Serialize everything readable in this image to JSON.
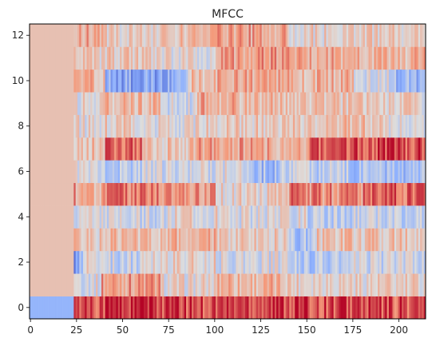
{
  "chart_data": {
    "type": "heatmap",
    "title": "MFCC",
    "xlabel": "",
    "ylabel": "",
    "xlim": [
      -0.5,
      214.5
    ],
    "ylim": [
      -0.5,
      12.5
    ],
    "x_ticks": [
      0,
      25,
      50,
      75,
      100,
      125,
      150,
      175,
      200
    ],
    "y_ticks": [
      0,
      2,
      4,
      6,
      8,
      10,
      12
    ],
    "colormap": "coolwarm",
    "grid": false,
    "n_coefficients": 13,
    "n_frames": 215,
    "silent_frames": 24,
    "rows": [
      {
        "coef": 0,
        "silent": -0.45,
        "segments": [
          [
            24,
            0.62
          ],
          [
            40,
            0.8
          ],
          [
            70,
            0.86
          ],
          [
            110,
            0.78
          ],
          [
            150,
            0.82
          ],
          [
            180,
            0.78
          ],
          [
            214,
            0.74
          ]
        ]
      },
      {
        "coef": 1,
        "silent": 0.22,
        "segments": [
          [
            24,
            0.2
          ],
          [
            38,
            0.0
          ],
          [
            70,
            0.45
          ],
          [
            100,
            0.05
          ],
          [
            110,
            0.4
          ],
          [
            140,
            0.3
          ],
          [
            175,
            0.15
          ],
          [
            214,
            0.1
          ]
        ]
      },
      {
        "coef": 2,
        "silent": 0.22,
        "segments": [
          [
            24,
            -0.75
          ],
          [
            28,
            -0.4
          ],
          [
            40,
            0.05
          ],
          [
            60,
            -0.15
          ],
          [
            100,
            0.1
          ],
          [
            140,
            -0.05
          ],
          [
            175,
            -0.25
          ],
          [
            214,
            -0.1
          ]
        ]
      },
      {
        "coef": 3,
        "silent": 0.22,
        "segments": [
          [
            24,
            0.55
          ],
          [
            40,
            0.15
          ],
          [
            70,
            0.25
          ],
          [
            100,
            0.3
          ],
          [
            140,
            0.15
          ],
          [
            155,
            -0.3
          ],
          [
            180,
            0.2
          ],
          [
            214,
            0.2
          ]
        ]
      },
      {
        "coef": 4,
        "silent": 0.22,
        "segments": [
          [
            24,
            0.05
          ],
          [
            40,
            0.0
          ],
          [
            75,
            -0.1
          ],
          [
            110,
            0.05
          ],
          [
            150,
            0.0
          ],
          [
            175,
            -0.2
          ],
          [
            214,
            -0.15
          ]
        ]
      },
      {
        "coef": 5,
        "silent": 0.22,
        "segments": [
          [
            24,
            0.45
          ],
          [
            40,
            0.35
          ],
          [
            70,
            0.55
          ],
          [
            100,
            0.45
          ],
          [
            140,
            0.1
          ],
          [
            150,
            0.55
          ],
          [
            180,
            0.5
          ],
          [
            214,
            0.65
          ]
        ]
      },
      {
        "coef": 6,
        "silent": 0.22,
        "segments": [
          [
            24,
            0.45
          ],
          [
            40,
            0.0
          ],
          [
            60,
            -0.2
          ],
          [
            90,
            -0.1
          ],
          [
            120,
            -0.05
          ],
          [
            135,
            -0.35
          ],
          [
            150,
            -0.1
          ],
          [
            175,
            -0.2
          ],
          [
            214,
            -0.35
          ]
        ]
      },
      {
        "coef": 7,
        "silent": 0.22,
        "segments": [
          [
            24,
            -0.05
          ],
          [
            40,
            0.25
          ],
          [
            60,
            0.65
          ],
          [
            90,
            0.2
          ],
          [
            130,
            0.4
          ],
          [
            150,
            0.3
          ],
          [
            180,
            0.7
          ],
          [
            214,
            0.75
          ]
        ]
      },
      {
        "coef": 8,
        "silent": 0.22,
        "segments": [
          [
            24,
            0.1
          ],
          [
            40,
            0.05
          ],
          [
            60,
            0.15
          ],
          [
            90,
            0.05
          ],
          [
            130,
            0.15
          ],
          [
            160,
            0.2
          ],
          [
            190,
            0.25
          ],
          [
            214,
            0.05
          ]
        ]
      },
      {
        "coef": 9,
        "silent": 0.22,
        "segments": [
          [
            24,
            0.4
          ],
          [
            40,
            0.05
          ],
          [
            70,
            0.25
          ],
          [
            90,
            -0.1
          ],
          [
            110,
            0.35
          ],
          [
            150,
            0.3
          ],
          [
            190,
            0.2
          ],
          [
            214,
            0.1
          ]
        ]
      },
      {
        "coef": 10,
        "silent": 0.22,
        "segments": [
          [
            24,
            0.2
          ],
          [
            40,
            0.3
          ],
          [
            85,
            -0.5
          ],
          [
            100,
            0.25
          ],
          [
            140,
            0.35
          ],
          [
            175,
            0.3
          ],
          [
            195,
            -0.1
          ],
          [
            214,
            -0.4
          ]
        ]
      },
      {
        "coef": 11,
        "silent": 0.22,
        "segments": [
          [
            24,
            0.55
          ],
          [
            40,
            0.1
          ],
          [
            70,
            0.15
          ],
          [
            100,
            0.05
          ],
          [
            140,
            0.45
          ],
          [
            175,
            0.4
          ],
          [
            214,
            0.3
          ]
        ]
      },
      {
        "coef": 12,
        "silent": 0.22,
        "segments": [
          [
            24,
            0.1
          ],
          [
            40,
            0.35
          ],
          [
            80,
            0.1
          ],
          [
            100,
            0.3
          ],
          [
            140,
            0.4
          ],
          [
            175,
            0.1
          ],
          [
            214,
            0.15
          ]
        ]
      }
    ]
  }
}
